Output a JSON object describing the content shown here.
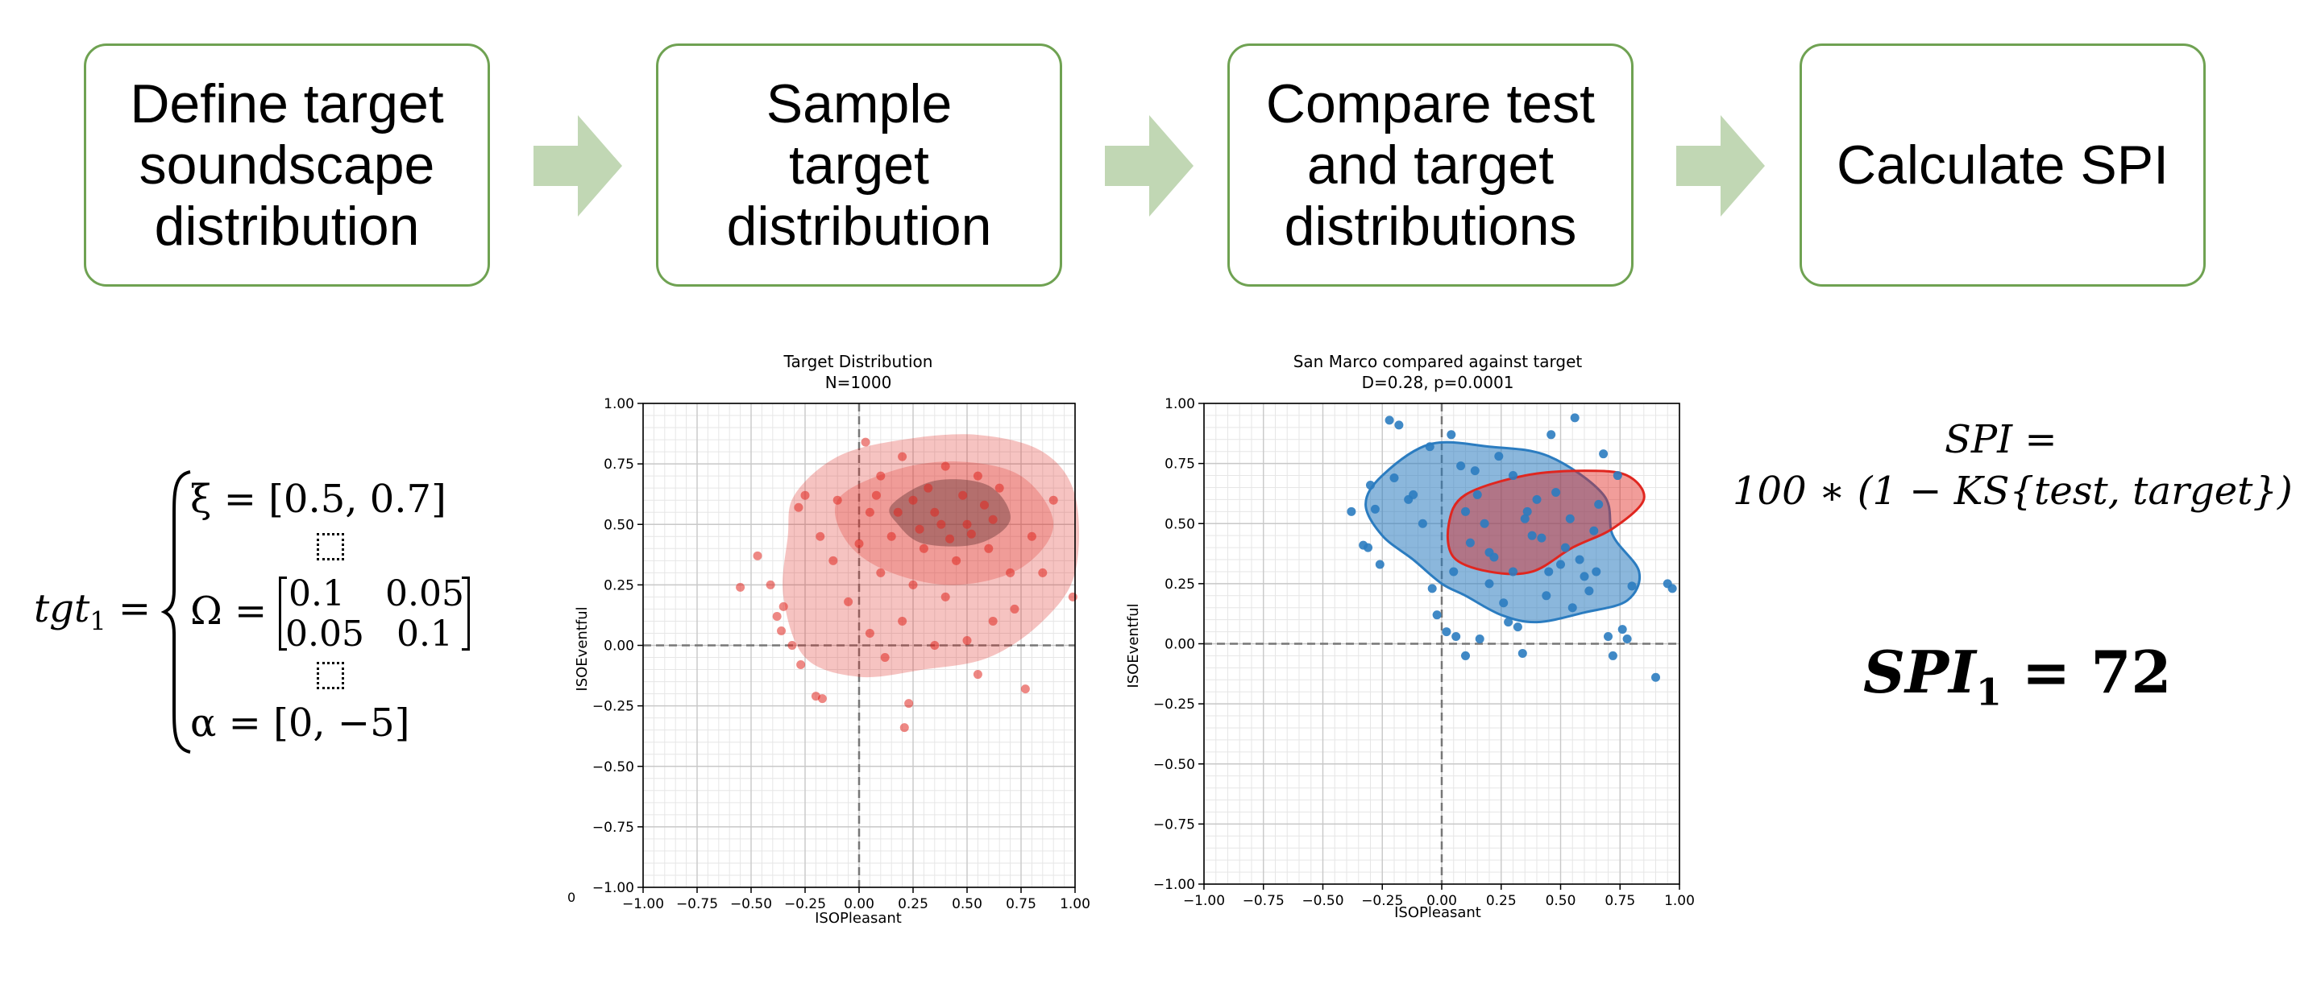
{
  "steps": [
    {
      "label": "Define target\nsoundscape\ndistribution"
    },
    {
      "label": "Sample\ntarget\ndistribution"
    },
    {
      "label": "Compare test\nand target\ndistributions"
    },
    {
      "label": "Calculate SPI"
    }
  ],
  "colors": {
    "box_border": "#6fa252",
    "arrow": "#c1d7b4",
    "target_red": "#e0261f",
    "test_blue": "#2b7cc0"
  },
  "equation": {
    "lhs_base": "tgt",
    "lhs_sub": "1",
    "xi_line": "ξ = [0.5, 0.7]",
    "omega_prefix": "Ω =",
    "omega_matrix": [
      [
        "0.1",
        "0.05"
      ],
      [
        "0.05",
        "0.1"
      ]
    ],
    "alpha_line": "α = [0, −5]"
  },
  "spi_formula": {
    "line1": "SPI =",
    "line2": "100 ∗ (1 − KS{test, target})"
  },
  "spi_result": {
    "base": "SPI",
    "sub": "1",
    "value": "= 72"
  },
  "chart_data": [
    {
      "type": "scatter",
      "title": "Target Distribution",
      "subtitle": "N=1000",
      "xlabel": "ISOPleasant",
      "ylabel": "ISOEventful",
      "xlim": [
        -1,
        1
      ],
      "ylim": [
        -1,
        1
      ],
      "xticks": [
        "−1.00",
        "−0.75",
        "−0.50",
        "−0.25",
        "0.00",
        "0.25",
        "0.50",
        "0.75",
        "1.00"
      ],
      "yticks": [
        "1.00",
        "0.75",
        "0.50",
        "0.25",
        "0.00",
        "−0.25",
        "−0.50",
        "−0.75",
        "−1.00"
      ],
      "stray_label": "0",
      "grid": true,
      "series": [
        {
          "color": "#e0261f",
          "kde_center": [
            0.42,
            0.52
          ],
          "points": [
            [
              -0.55,
              0.24
            ],
            [
              -0.47,
              0.37
            ],
            [
              -0.41,
              0.25
            ],
            [
              -0.38,
              0.12
            ],
            [
              -0.35,
              0.16
            ],
            [
              -0.36,
              0.06
            ],
            [
              -0.31,
              0.0
            ],
            [
              -0.27,
              -0.08
            ],
            [
              -0.2,
              -0.21
            ],
            [
              -0.17,
              -0.22
            ],
            [
              -0.28,
              0.57
            ],
            [
              -0.25,
              0.62
            ],
            [
              0.03,
              0.84
            ],
            [
              0.23,
              -0.24
            ],
            [
              0.21,
              -0.34
            ],
            [
              0.55,
              -0.12
            ],
            [
              0.77,
              -0.18
            ],
            [
              0.99,
              0.2
            ],
            [
              -0.12,
              0.35
            ],
            [
              -0.05,
              0.18
            ],
            [
              0.05,
              0.05
            ],
            [
              0.12,
              -0.05
            ],
            [
              0.2,
              0.1
            ],
            [
              0.35,
              0.0
            ],
            [
              0.5,
              0.02
            ],
            [
              0.62,
              0.1
            ],
            [
              0.7,
              0.3
            ],
            [
              0.8,
              0.45
            ],
            [
              0.9,
              0.6
            ],
            [
              0.1,
              0.7
            ],
            [
              0.2,
              0.78
            ],
            [
              0.4,
              0.74
            ],
            [
              0.55,
              0.7
            ],
            [
              0.65,
              0.65
            ],
            [
              0.3,
              0.4
            ],
            [
              0.45,
              0.35
            ],
            [
              0.6,
              0.4
            ],
            [
              0.35,
              0.55
            ],
            [
              0.5,
              0.5
            ],
            [
              0.25,
              0.6
            ],
            [
              0.15,
              0.45
            ],
            [
              0.05,
              0.55
            ],
            [
              -0.1,
              0.6
            ],
            [
              -0.18,
              0.45
            ],
            [
              0.72,
              0.15
            ],
            [
              0.85,
              0.3
            ],
            [
              0.4,
              0.2
            ],
            [
              0.25,
              0.25
            ],
            [
              0.1,
              0.3
            ],
            [
              0.0,
              0.42
            ],
            [
              0.58,
              0.58
            ],
            [
              0.48,
              0.62
            ],
            [
              0.38,
              0.5
            ],
            [
              0.28,
              0.48
            ],
            [
              0.42,
              0.44
            ],
            [
              0.52,
              0.46
            ],
            [
              0.32,
              0.65
            ],
            [
              0.62,
              0.52
            ],
            [
              0.18,
              0.55
            ],
            [
              0.08,
              0.62
            ]
          ]
        }
      ]
    },
    {
      "type": "scatter",
      "title": "San Marco compared against target",
      "subtitle": "D=0.28, p=0.0001",
      "xlabel": "ISOPleasant",
      "ylabel": "ISOEventful",
      "xlim": [
        -1,
        1
      ],
      "ylim": [
        -1,
        1
      ],
      "xticks": [
        "−1.00",
        "−0.75",
        "−0.50",
        "−0.25",
        "0.00",
        "0.25",
        "0.50",
        "0.75",
        "1.00"
      ],
      "yticks": [
        "1.00",
        "0.75",
        "0.50",
        "0.25",
        "0.00",
        "−0.25",
        "−0.50",
        "−0.75",
        "−1.00"
      ],
      "grid": true,
      "series": [
        {
          "color": "#2b7cc0",
          "points": [
            [
              -0.38,
              0.55
            ],
            [
              -0.33,
              0.41
            ],
            [
              -0.31,
              0.4
            ],
            [
              -0.28,
              0.56
            ],
            [
              -0.26,
              0.33
            ],
            [
              -0.3,
              0.66
            ],
            [
              -0.22,
              0.93
            ],
            [
              -0.18,
              0.91
            ],
            [
              -0.2,
              0.69
            ],
            [
              -0.14,
              0.6
            ],
            [
              -0.12,
              0.62
            ],
            [
              -0.08,
              0.5
            ],
            [
              -0.05,
              0.82
            ],
            [
              -0.04,
              0.23
            ],
            [
              -0.02,
              0.12
            ],
            [
              0.02,
              0.05
            ],
            [
              0.04,
              0.87
            ],
            [
              0.06,
              0.03
            ],
            [
              0.08,
              0.74
            ],
            [
              0.1,
              -0.05
            ],
            [
              0.14,
              0.72
            ],
            [
              0.16,
              0.02
            ],
            [
              0.18,
              0.5
            ],
            [
              0.2,
              0.38
            ],
            [
              0.22,
              0.36
            ],
            [
              0.24,
              0.78
            ],
            [
              0.26,
              0.17
            ],
            [
              0.28,
              0.09
            ],
            [
              0.3,
              0.3
            ],
            [
              0.32,
              0.07
            ],
            [
              0.34,
              -0.04
            ],
            [
              0.36,
              0.55
            ],
            [
              0.38,
              0.45
            ],
            [
              0.4,
              0.6
            ],
            [
              0.42,
              0.44
            ],
            [
              0.44,
              0.2
            ],
            [
              0.46,
              0.87
            ],
            [
              0.48,
              0.63
            ],
            [
              0.5,
              0.33
            ],
            [
              0.52,
              0.4
            ],
            [
              0.54,
              0.52
            ],
            [
              0.56,
              0.94
            ],
            [
              0.58,
              0.35
            ],
            [
              0.6,
              0.28
            ],
            [
              0.62,
              0.22
            ],
            [
              0.64,
              0.47
            ],
            [
              0.66,
              0.58
            ],
            [
              0.68,
              0.79
            ],
            [
              0.7,
              0.03
            ],
            [
              0.72,
              -0.05
            ],
            [
              0.74,
              0.7
            ],
            [
              0.76,
              0.06
            ],
            [
              0.78,
              0.02
            ],
            [
              0.8,
              0.24
            ],
            [
              0.9,
              -0.14
            ],
            [
              0.95,
              0.25
            ],
            [
              0.97,
              0.23
            ],
            [
              0.1,
              0.55
            ],
            [
              0.15,
              0.62
            ],
            [
              0.3,
              0.7
            ],
            [
              0.05,
              0.3
            ],
            [
              0.2,
              0.25
            ],
            [
              0.45,
              0.3
            ],
            [
              0.12,
              0.42
            ],
            [
              0.35,
              0.52
            ],
            [
              0.55,
              0.15
            ],
            [
              0.65,
              0.3
            ]
          ]
        }
      ]
    }
  ]
}
